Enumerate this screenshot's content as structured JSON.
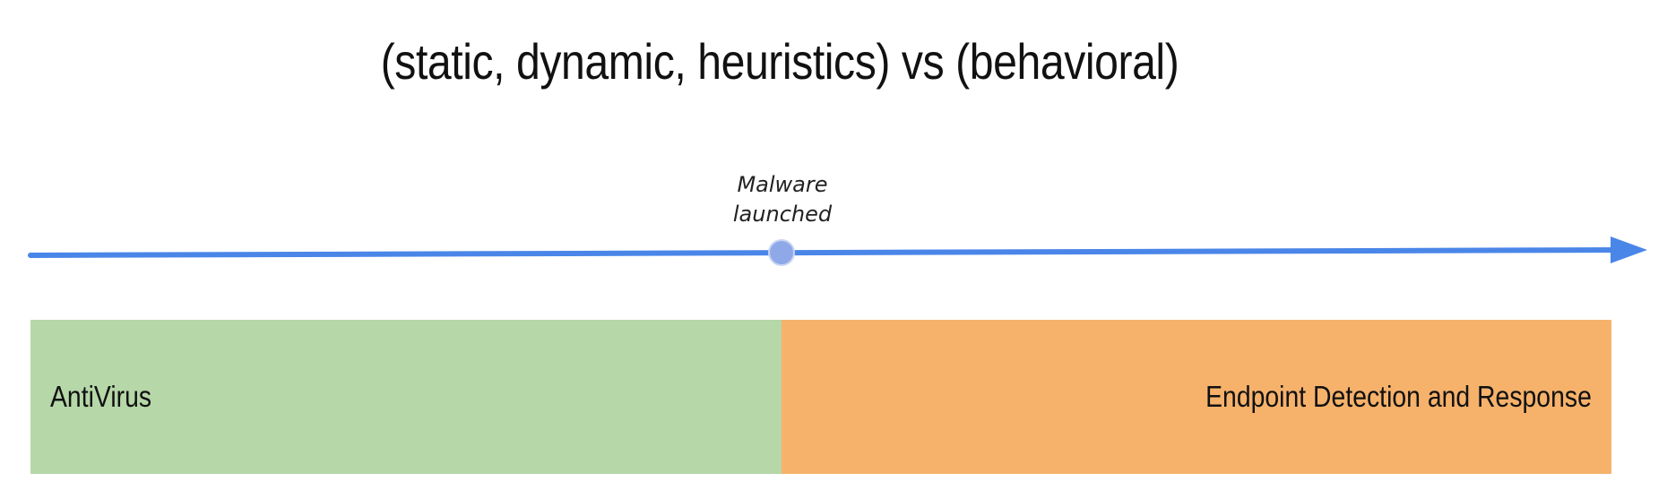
{
  "title": "(static, dynamic, heuristics) vs (behavioral)",
  "timeline": {
    "event": {
      "line1": "Malware",
      "line2": "launched"
    },
    "line_color": "#4a86e8",
    "marker_color": "#8fa9e8"
  },
  "segments": {
    "antivirus": {
      "label": "AntiVirus",
      "color": "#b6d7a8"
    },
    "edr": {
      "label": "Endpoint Detection and Response",
      "color": "#f6b26b"
    }
  }
}
